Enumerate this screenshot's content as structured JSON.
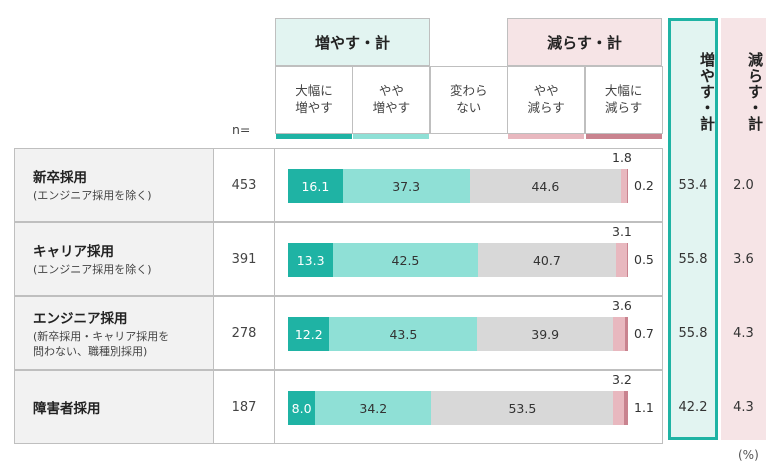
{
  "header": {
    "n_label": "n=",
    "group_increase": "増やす・計",
    "group_decrease": "減らす・計",
    "sub_labels": [
      "大幅に\n増やす",
      "やや\n増やす",
      "変わら\nない",
      "やや\n減らす",
      "大幅に\n減らす"
    ],
    "total_increase": "増やす・計",
    "total_decrease": "減らす・計"
  },
  "unit": "(%)",
  "colors": {
    "big_increase": "#1fb3a4",
    "small_increase": "#8fe0d6",
    "no_change": "#d8d8d8",
    "small_decrease": "#e8b8bf",
    "big_decrease": "#c9838f",
    "increase_header_bg": "#e2f4f1",
    "decrease_header_bg": "#f6e4e6",
    "total_increase_bg": "#e2f4f1",
    "total_increase_border": "#1fb3a4",
    "total_decrease_bg": "#f6e4e6"
  },
  "rows": [
    {
      "title": "新卒採用",
      "subtitle": "(エンジニア採用を除く)",
      "n": "453",
      "total_increase": "53.4",
      "total_decrease": "2.0"
    },
    {
      "title": "キャリア採用",
      "subtitle": "(エンジニア採用を除く)",
      "n": "391",
      "total_increase": "55.8",
      "total_decrease": "3.6"
    },
    {
      "title": "エンジニア採用",
      "subtitle": "(新卒採用・キャリア採用を\n問わない、職種別採用)",
      "n": "278",
      "total_increase": "55.8",
      "total_decrease": "4.3"
    },
    {
      "title": "障害者採用",
      "subtitle": "",
      "n": "187",
      "total_increase": "42.2",
      "total_decrease": "4.3"
    }
  ],
  "chart_data": {
    "type": "bar",
    "stacked": true,
    "orientation": "horizontal",
    "categories": [
      "新卒採用",
      "キャリア採用",
      "エンジニア採用",
      "障害者採用"
    ],
    "series": [
      {
        "name": "大幅に増やす",
        "values": [
          16.1,
          13.3,
          12.2,
          8.0
        ]
      },
      {
        "name": "やや増やす",
        "values": [
          37.3,
          42.5,
          43.5,
          34.2
        ]
      },
      {
        "name": "変わらない",
        "values": [
          44.6,
          40.7,
          39.9,
          53.5
        ]
      },
      {
        "name": "やや減らす",
        "values": [
          1.8,
          3.1,
          3.6,
          3.2
        ]
      },
      {
        "name": "大幅に減らす",
        "values": [
          0.2,
          0.5,
          0.7,
          1.1
        ]
      }
    ],
    "value_labels": [
      [
        "16.1",
        "37.3",
        "44.6",
        "1.8",
        "0.2"
      ],
      [
        "13.3",
        "42.5",
        "40.7",
        "3.1",
        "0.5"
      ],
      [
        "12.2",
        "43.5",
        "39.9",
        "3.6",
        "0.7"
      ],
      [
        "8.0",
        "34.2",
        "53.5",
        "3.2",
        "1.1"
      ]
    ],
    "xlim": [
      0,
      100
    ]
  }
}
